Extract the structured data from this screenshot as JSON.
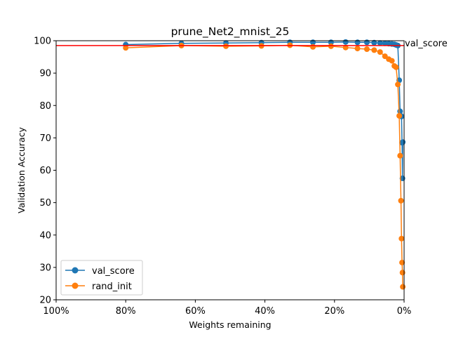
{
  "chart_data": {
    "type": "line",
    "title": "prune_Net2_mnist_25",
    "xlabel": "Weights remaining",
    "ylabel": "Validation Accuracy",
    "x_axis": {
      "orientation": "reversed",
      "xlim": [
        100,
        0
      ],
      "ticks": [
        100,
        80,
        60,
        40,
        20,
        0
      ],
      "tick_labels": [
        "100%",
        "80%",
        "60%",
        "40%",
        "20%",
        "0%"
      ]
    },
    "y_axis": {
      "ylim": [
        20,
        100
      ],
      "ticks": [
        20,
        30,
        40,
        50,
        60,
        70,
        80,
        90,
        100
      ],
      "tick_labels": [
        "20",
        "30",
        "40",
        "50",
        "60",
        "70",
        "80",
        "90",
        "100"
      ]
    },
    "grid": false,
    "legend_position": "lower-left",
    "series": [
      {
        "name": "val_score",
        "color": "#1f77b4",
        "marker": "circle",
        "x": [
          80,
          64,
          51.2,
          41,
          32.8,
          26.2,
          21,
          16.8,
          13.4,
          10.7,
          8.6,
          6.9,
          5.5,
          4.4,
          3.5,
          2.8,
          2.3,
          1.8,
          1.4,
          1.15,
          0.9,
          0.74,
          0.59,
          0.47,
          0.38
        ],
        "y": [
          98.8,
          99.2,
          99.3,
          99.4,
          99.5,
          99.5,
          99.5,
          99.6,
          99.5,
          99.5,
          99.4,
          99.3,
          99.2,
          99.1,
          99.0,
          98.9,
          98.7,
          98.5,
          87.8,
          78.2,
          76.8,
          76.6,
          68.5,
          57.5,
          68.7
        ]
      },
      {
        "name": "rand_init",
        "color": "#ff7f0e",
        "marker": "circle",
        "x": [
          80,
          64,
          51.2,
          41,
          32.8,
          26.2,
          21,
          16.8,
          13.4,
          10.7,
          8.6,
          6.9,
          5.5,
          4.4,
          3.5,
          2.8,
          2.3,
          1.8,
          1.4,
          1.15,
          0.9,
          0.74,
          0.59,
          0.47,
          0.38
        ],
        "y": [
          97.8,
          98.5,
          98.3,
          98.4,
          98.6,
          98.1,
          98.3,
          97.9,
          97.6,
          97.4,
          97.1,
          96.5,
          95.2,
          94.3,
          93.8,
          92.2,
          91.8,
          86.5,
          76.8,
          64.5,
          50.6,
          38.9,
          31.5,
          28.4,
          24.0
        ]
      }
    ],
    "reference_line": {
      "y": 98.5,
      "color": "#ff0000",
      "label": "val_score"
    }
  }
}
